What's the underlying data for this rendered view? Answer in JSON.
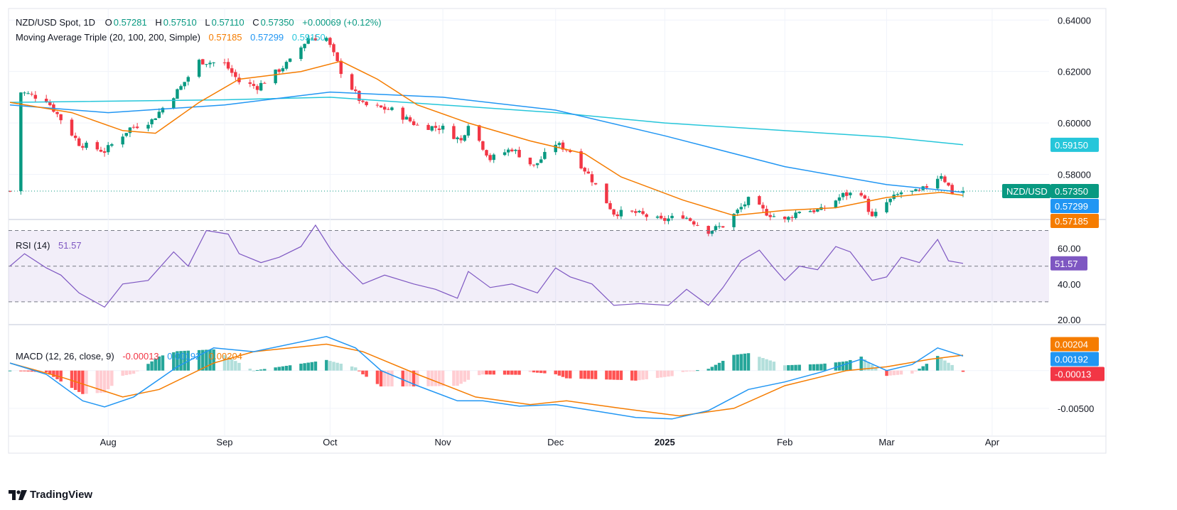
{
  "header": {
    "symbol": "NZD/USD Spot, 1D",
    "ohlc": [
      {
        "key": "O",
        "value": "0.57281"
      },
      {
        "key": "H",
        "value": "0.57510"
      },
      {
        "key": "L",
        "value": "0.57110"
      },
      {
        "key": "C",
        "value": "0.57350"
      }
    ],
    "change": "+0.00069 (+0.12%)"
  },
  "ma_legend": {
    "label": "Moving Average Triple (20, 100, 200, Simple)",
    "values": [
      "0.57185",
      "0.57299",
      "0.59150"
    ],
    "colors": [
      "#f57c00",
      "#2196f3",
      "#26c6da"
    ]
  },
  "rsi_legend": {
    "label": "RSI (14)",
    "value": "51.57"
  },
  "macd_legend": {
    "label": "MACD (12, 26, close, 9)",
    "values": [
      "-0.00013",
      "0.00192",
      "0.00204"
    ]
  },
  "price_badges": [
    {
      "text": "0.59150",
      "color": "#26c6da",
      "text_color": "#131722"
    },
    {
      "text": "NZD/USD",
      "color": "#089981",
      "text_color": "#ffffff"
    },
    {
      "text": "0.57350",
      "color": "#089981",
      "text_color": "#ffffff"
    },
    {
      "text": "0.57299",
      "color": "#2196f3",
      "text_color": "#ffffff"
    },
    {
      "text": "0.57185",
      "color": "#f57c00",
      "text_color": "#ffffff"
    }
  ],
  "rsi_badge": {
    "text": "51.57",
    "color": "#7e57c2"
  },
  "macd_badges": [
    {
      "text": "0.00204",
      "color": "#f57c00"
    },
    {
      "text": "0.00192",
      "color": "#2196f3"
    },
    {
      "text": "-0.00013",
      "color": "#f23645"
    }
  ],
  "footer": {
    "brand": "TradingView"
  },
  "colors": {
    "up": "#089981",
    "down": "#f23645",
    "ma20": "#f57c00",
    "ma100": "#2196f3",
    "ma200": "#26c6da",
    "rsi": "#7e57c2",
    "hist_up_strong": "#26a69a",
    "hist_up_weak": "#b2dfdb",
    "hist_dn_strong": "#ff5252",
    "hist_dn_weak": "#ffcdd2"
  },
  "chart_data": {
    "type": "candlestick",
    "x_labels": [
      {
        "label": "Aug",
        "date": "2024-08-01"
      },
      {
        "label": "Sep",
        "date": "2024-09-02"
      },
      {
        "label": "Oct",
        "date": "2024-10-01"
      },
      {
        "label": "Nov",
        "date": "2024-11-01"
      },
      {
        "label": "Dec",
        "date": "2024-12-02"
      },
      {
        "label": "2025",
        "date": "2025-01-01"
      },
      {
        "label": "Feb",
        "date": "2025-02-03"
      },
      {
        "label": "Mar",
        "date": "2025-03-03"
      },
      {
        "label": "Apr",
        "date": "2025-04-01"
      }
    ],
    "price_axis": {
      "ticks": [
        "0.64000",
        "0.62000",
        "0.60000",
        "0.58000"
      ],
      "range": [
        0.563,
        0.6445
      ]
    },
    "rsi_axis": {
      "ticks": [
        "60.00",
        "40.00",
        "20.00"
      ],
      "range": [
        18,
        75
      ],
      "bands": [
        30,
        70
      ],
      "mid": 50
    },
    "macd_axis": {
      "ticks": [
        "-0.00500"
      ],
      "range": [
        -0.0083,
        0.0058
      ]
    },
    "close_anchors": [
      {
        "date": "2024-07-08",
        "close": 0.612
      },
      {
        "date": "2024-07-15",
        "close": 0.609
      },
      {
        "date": "2024-07-24",
        "close": 0.592
      },
      {
        "date": "2024-07-31",
        "close": 0.589
      },
      {
        "date": "2024-08-07",
        "close": 0.598
      },
      {
        "date": "2024-08-13",
        "close": 0.601
      },
      {
        "date": "2024-08-21",
        "close": 0.614
      },
      {
        "date": "2024-08-26",
        "close": 0.624
      },
      {
        "date": "2024-09-02",
        "close": 0.623
      },
      {
        "date": "2024-09-06",
        "close": 0.616
      },
      {
        "date": "2024-09-11",
        "close": 0.614
      },
      {
        "date": "2024-09-20",
        "close": 0.624
      },
      {
        "date": "2024-09-25",
        "close": 0.633
      },
      {
        "date": "2024-09-30",
        "close": 0.633
      },
      {
        "date": "2024-10-04",
        "close": 0.62
      },
      {
        "date": "2024-10-10",
        "close": 0.607
      },
      {
        "date": "2024-10-18",
        "close": 0.605
      },
      {
        "date": "2024-10-25",
        "close": 0.599
      },
      {
        "date": "2024-11-01",
        "close": 0.598
      },
      {
        "date": "2024-11-06",
        "close": 0.593
      },
      {
        "date": "2024-11-08",
        "close": 0.6
      },
      {
        "date": "2024-11-14",
        "close": 0.586
      },
      {
        "date": "2024-11-20",
        "close": 0.59
      },
      {
        "date": "2024-11-26",
        "close": 0.583
      },
      {
        "date": "2024-12-02",
        "close": 0.592
      },
      {
        "date": "2024-12-06",
        "close": 0.589
      },
      {
        "date": "2024-12-11",
        "close": 0.58
      },
      {
        "date": "2024-12-18",
        "close": 0.565
      },
      {
        "date": "2024-12-24",
        "close": 0.565
      },
      {
        "date": "2024-12-31",
        "close": 0.562
      },
      {
        "date": "2025-01-06",
        "close": 0.564
      },
      {
        "date": "2025-01-13",
        "close": 0.558
      },
      {
        "date": "2025-01-17",
        "close": 0.56
      },
      {
        "date": "2025-01-24",
        "close": 0.57
      },
      {
        "date": "2025-01-29",
        "close": 0.565
      },
      {
        "date": "2025-02-03",
        "close": 0.562
      },
      {
        "date": "2025-02-07",
        "close": 0.566
      },
      {
        "date": "2025-02-13",
        "close": 0.566
      },
      {
        "date": "2025-02-19",
        "close": 0.572
      },
      {
        "date": "2025-02-24",
        "close": 0.573
      },
      {
        "date": "2025-02-27",
        "close": 0.563
      },
      {
        "date": "2025-03-03",
        "close": 0.569
      },
      {
        "date": "2025-03-07",
        "close": 0.573
      },
      {
        "date": "2025-03-12",
        "close": 0.573
      },
      {
        "date": "2025-03-18",
        "close": 0.58
      },
      {
        "date": "2025-03-21",
        "close": 0.573
      },
      {
        "date": "2025-03-24",
        "close": 0.5735
      }
    ],
    "ma20": [
      {
        "date": "2024-07-05",
        "value": 0.608
      },
      {
        "date": "2024-07-22",
        "value": 0.604
      },
      {
        "date": "2024-08-05",
        "value": 0.597
      },
      {
        "date": "2024-08-14",
        "value": 0.596
      },
      {
        "date": "2024-08-26",
        "value": 0.608
      },
      {
        "date": "2024-09-06",
        "value": 0.617
      },
      {
        "date": "2024-09-23",
        "value": 0.62
      },
      {
        "date": "2024-10-04",
        "value": 0.624
      },
      {
        "date": "2024-10-14",
        "value": 0.617
      },
      {
        "date": "2024-10-25",
        "value": 0.607
      },
      {
        "date": "2024-11-08",
        "value": 0.6
      },
      {
        "date": "2024-11-25",
        "value": 0.593
      },
      {
        "date": "2024-12-10",
        "value": 0.588
      },
      {
        "date": "2024-12-20",
        "value": 0.579
      },
      {
        "date": "2025-01-06",
        "value": 0.57
      },
      {
        "date": "2025-01-20",
        "value": 0.564
      },
      {
        "date": "2025-02-03",
        "value": 0.566
      },
      {
        "date": "2025-02-17",
        "value": 0.567
      },
      {
        "date": "2025-03-03",
        "value": 0.571
      },
      {
        "date": "2025-03-18",
        "value": 0.573
      },
      {
        "date": "2025-03-24",
        "value": 0.57185
      }
    ],
    "ma100": [
      {
        "date": "2024-07-05",
        "value": 0.607
      },
      {
        "date": "2024-08-01",
        "value": 0.604
      },
      {
        "date": "2024-09-02",
        "value": 0.607
      },
      {
        "date": "2024-10-01",
        "value": 0.612
      },
      {
        "date": "2024-11-01",
        "value": 0.61
      },
      {
        "date": "2024-12-02",
        "value": 0.605
      },
      {
        "date": "2025-01-01",
        "value": 0.595
      },
      {
        "date": "2025-02-03",
        "value": 0.583
      },
      {
        "date": "2025-03-03",
        "value": 0.576
      },
      {
        "date": "2025-03-24",
        "value": 0.57299
      }
    ],
    "ma200": [
      {
        "date": "2024-07-05",
        "value": 0.608
      },
      {
        "date": "2024-09-02",
        "value": 0.609
      },
      {
        "date": "2024-10-01",
        "value": 0.61
      },
      {
        "date": "2024-11-01",
        "value": 0.607
      },
      {
        "date": "2024-12-02",
        "value": 0.604
      },
      {
        "date": "2025-01-01",
        "value": 0.6
      },
      {
        "date": "2025-02-03",
        "value": 0.597
      },
      {
        "date": "2025-03-03",
        "value": 0.5945
      },
      {
        "date": "2025-03-24",
        "value": 0.5915
      }
    ],
    "rsi": [
      {
        "date": "2024-07-05",
        "value": 50
      },
      {
        "date": "2024-07-09",
        "value": 57
      },
      {
        "date": "2024-07-15",
        "value": 49
      },
      {
        "date": "2024-07-19",
        "value": 45
      },
      {
        "date": "2024-07-24",
        "value": 35
      },
      {
        "date": "2024-07-31",
        "value": 27
      },
      {
        "date": "2024-08-05",
        "value": 40
      },
      {
        "date": "2024-08-12",
        "value": 42
      },
      {
        "date": "2024-08-19",
        "value": 58
      },
      {
        "date": "2024-08-23",
        "value": 50
      },
      {
        "date": "2024-08-28",
        "value": 70
      },
      {
        "date": "2024-09-03",
        "value": 68
      },
      {
        "date": "2024-09-06",
        "value": 57
      },
      {
        "date": "2024-09-12",
        "value": 52
      },
      {
        "date": "2024-09-17",
        "value": 55
      },
      {
        "date": "2024-09-23",
        "value": 61
      },
      {
        "date": "2024-09-27",
        "value": 73
      },
      {
        "date": "2024-10-01",
        "value": 60
      },
      {
        "date": "2024-10-04",
        "value": 52
      },
      {
        "date": "2024-10-10",
        "value": 40
      },
      {
        "date": "2024-10-16",
        "value": 45
      },
      {
        "date": "2024-10-24",
        "value": 40
      },
      {
        "date": "2024-10-30",
        "value": 37
      },
      {
        "date": "2024-11-05",
        "value": 32
      },
      {
        "date": "2024-11-08",
        "value": 47
      },
      {
        "date": "2024-11-14",
        "value": 38
      },
      {
        "date": "2024-11-20",
        "value": 40
      },
      {
        "date": "2024-11-27",
        "value": 35
      },
      {
        "date": "2024-12-02",
        "value": 49
      },
      {
        "date": "2024-12-06",
        "value": 44
      },
      {
        "date": "2024-12-12",
        "value": 40
      },
      {
        "date": "2024-12-18",
        "value": 28
      },
      {
        "date": "2024-12-25",
        "value": 29
      },
      {
        "date": "2025-01-02",
        "value": 28
      },
      {
        "date": "2025-01-07",
        "value": 37
      },
      {
        "date": "2025-01-13",
        "value": 28
      },
      {
        "date": "2025-01-17",
        "value": 38
      },
      {
        "date": "2025-01-22",
        "value": 53
      },
      {
        "date": "2025-01-27",
        "value": 59
      },
      {
        "date": "2025-01-31",
        "value": 49
      },
      {
        "date": "2025-02-03",
        "value": 42
      },
      {
        "date": "2025-02-07",
        "value": 50
      },
      {
        "date": "2025-02-12",
        "value": 48
      },
      {
        "date": "2025-02-17",
        "value": 61
      },
      {
        "date": "2025-02-21",
        "value": 58
      },
      {
        "date": "2025-02-27",
        "value": 42
      },
      {
        "date": "2025-03-03",
        "value": 44
      },
      {
        "date": "2025-03-07",
        "value": 55
      },
      {
        "date": "2025-03-12",
        "value": 52
      },
      {
        "date": "2025-03-17",
        "value": 65
      },
      {
        "date": "2025-03-20",
        "value": 53
      },
      {
        "date": "2025-03-24",
        "value": 51.57
      }
    ],
    "macd": [
      {
        "date": "2024-07-05",
        "value": 0.001
      },
      {
        "date": "2024-07-15",
        "value": -0.0005
      },
      {
        "date": "2024-07-25",
        "value": -0.004
      },
      {
        "date": "2024-07-31",
        "value": -0.0048
      },
      {
        "date": "2024-08-08",
        "value": -0.0035
      },
      {
        "date": "2024-08-20",
        "value": 0.0005
      },
      {
        "date": "2024-08-30",
        "value": 0.003
      },
      {
        "date": "2024-09-10",
        "value": 0.0025
      },
      {
        "date": "2024-09-30",
        "value": 0.0045
      },
      {
        "date": "2024-10-08",
        "value": 0.003
      },
      {
        "date": "2024-10-15",
        "value": 0.0
      },
      {
        "date": "2024-10-25",
        "value": -0.002
      },
      {
        "date": "2024-11-05",
        "value": -0.004
      },
      {
        "date": "2024-11-12",
        "value": -0.004
      },
      {
        "date": "2024-11-22",
        "value": -0.0047
      },
      {
        "date": "2024-12-02",
        "value": -0.0045
      },
      {
        "date": "2024-12-15",
        "value": -0.0055
      },
      {
        "date": "2024-12-24",
        "value": -0.0062
      },
      {
        "date": "2025-01-03",
        "value": -0.0064
      },
      {
        "date": "2025-01-13",
        "value": -0.0053
      },
      {
        "date": "2025-01-24",
        "value": -0.0025
      },
      {
        "date": "2025-02-03",
        "value": -0.0015
      },
      {
        "date": "2025-02-13",
        "value": -0.0002
      },
      {
        "date": "2025-02-24",
        "value": 0.0015
      },
      {
        "date": "2025-03-03",
        "value": 0.0
      },
      {
        "date": "2025-03-10",
        "value": 0.0008
      },
      {
        "date": "2025-03-17",
        "value": 0.003
      },
      {
        "date": "2025-03-24",
        "value": 0.00192
      }
    ],
    "signal": [
      {
        "date": "2024-07-05",
        "value": 0.001
      },
      {
        "date": "2024-07-20",
        "value": -0.001
      },
      {
        "date": "2024-08-05",
        "value": -0.0035
      },
      {
        "date": "2024-08-15",
        "value": -0.0025
      },
      {
        "date": "2024-08-30",
        "value": 0.001
      },
      {
        "date": "2024-09-10",
        "value": 0.0025
      },
      {
        "date": "2024-09-30",
        "value": 0.0035
      },
      {
        "date": "2024-10-10",
        "value": 0.0025
      },
      {
        "date": "2024-10-25",
        "value": -0.0005
      },
      {
        "date": "2024-11-10",
        "value": -0.0035
      },
      {
        "date": "2024-11-25",
        "value": -0.0045
      },
      {
        "date": "2024-12-05",
        "value": -0.004
      },
      {
        "date": "2024-12-20",
        "value": -0.005
      },
      {
        "date": "2025-01-05",
        "value": -0.006
      },
      {
        "date": "2025-01-20",
        "value": -0.005
      },
      {
        "date": "2025-02-03",
        "value": -0.002
      },
      {
        "date": "2025-02-20",
        "value": 0.0
      },
      {
        "date": "2025-03-03",
        "value": 0.0005
      },
      {
        "date": "2025-03-15",
        "value": 0.0015
      },
      {
        "date": "2025-03-24",
        "value": 0.00204
      }
    ]
  }
}
